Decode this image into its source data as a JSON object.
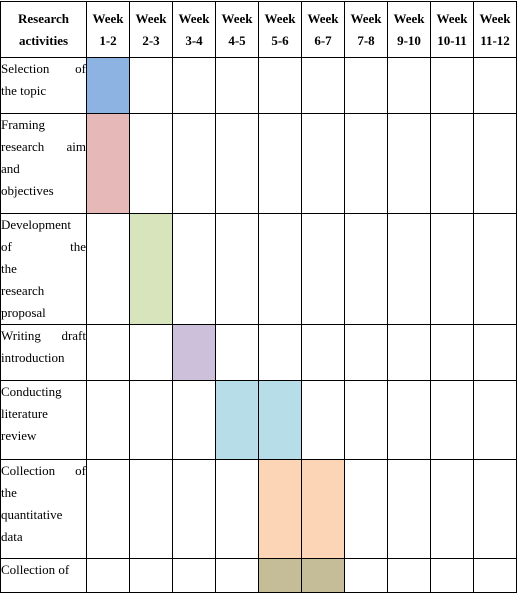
{
  "header": {
    "activity": [
      "Research",
      "activities"
    ],
    "weeks": [
      [
        "Week",
        "1-2"
      ],
      [
        "Week",
        "2-3"
      ],
      [
        "Week",
        "3-4"
      ],
      [
        "Week",
        "4-5"
      ],
      [
        "Week",
        "5-6"
      ],
      [
        "Week",
        "6-7"
      ],
      [
        "Week",
        "7-8"
      ],
      [
        "Week",
        "9-10"
      ],
      [
        "Week",
        "10-11"
      ],
      [
        "Week",
        "11-12"
      ]
    ]
  },
  "rows": [
    {
      "lines": [
        "Selection of",
        "the topic"
      ],
      "active": [
        0
      ],
      "color": "#8db3e2"
    },
    {
      "lines": [
        "Framing",
        "research aim",
        "and",
        "objectives"
      ],
      "active": [
        0
      ],
      "color": "#e6b9b8"
    },
    {
      "lines": [
        "Development",
        "of the",
        "the",
        "research",
        "proposal"
      ],
      "active": [
        1
      ],
      "color": "#d7e4bc"
    },
    {
      "lines": [
        "Writing draft",
        "introduction"
      ],
      "active": [
        2
      ],
      "color": "#ccc0da"
    },
    {
      "lines": [
        "Conducting",
        "literature",
        "review"
      ],
      "active": [
        3,
        4
      ],
      "color": "#b7dde8"
    },
    {
      "lines": [
        "Collection of",
        "the",
        "quantitative",
        "data"
      ],
      "active": [
        4,
        5
      ],
      "color": "#fbd5b5"
    },
    {
      "lines": [
        "Collection of"
      ],
      "active": [
        4,
        5
      ],
      "color": "#c4bd97"
    }
  ]
}
